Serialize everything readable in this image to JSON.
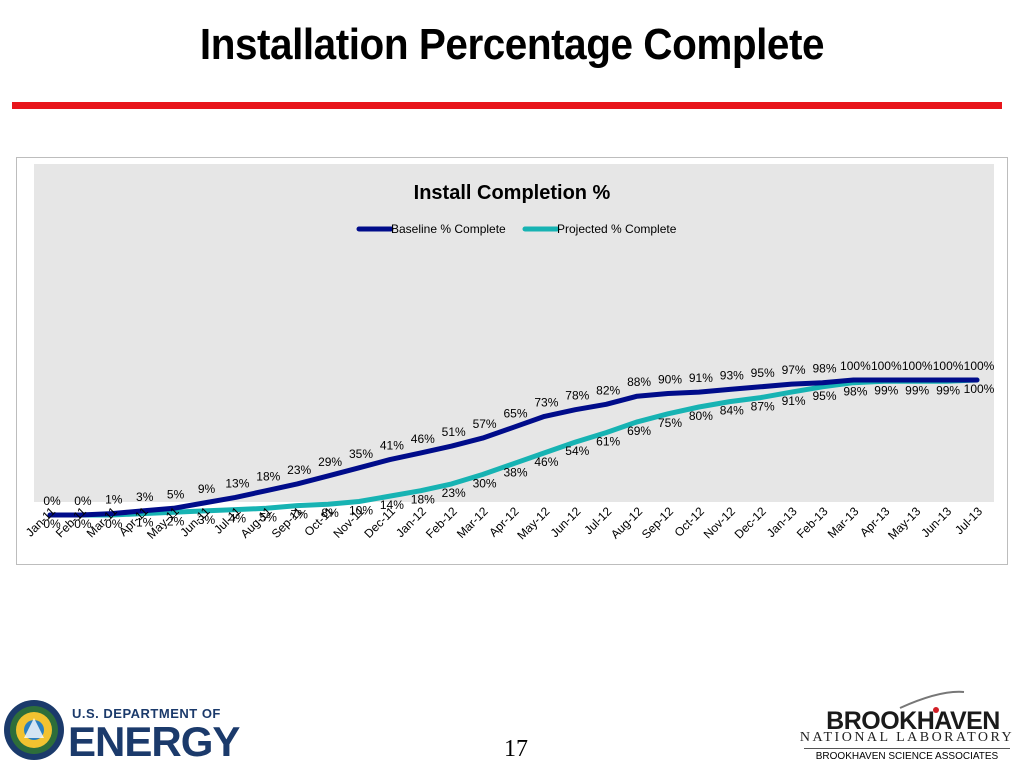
{
  "slide": {
    "title": "Installation Percentage Complete",
    "page_number": "17"
  },
  "footer": {
    "doe_line1": "U.S. DEPARTMENT OF",
    "doe_line2": "ENERGY",
    "bnl_name": "BROOKHAVEN",
    "bnl_subtitle": "NATIONAL LABORATORY",
    "bnl_associates": "BROOKHAVEN SCIENCE ASSOCIATES"
  },
  "colors": {
    "title_rule": "#e8151b",
    "plot_background": "#e6e6e6",
    "baseline_series": "#000c8a",
    "projected_series": "#17b3b3"
  },
  "chart_data": {
    "type": "line",
    "title": "Install Completion %",
    "xlabel": "",
    "ylabel": "",
    "ylim": [
      0,
      100
    ],
    "grid": false,
    "legend_position": "top-center",
    "categories": [
      "Jan-11",
      "Feb-11",
      "Mar-11",
      "Apr-11",
      "May-11",
      "Jun-11",
      "Jul-11",
      "Aug-11",
      "Sep-11",
      "Oct-11",
      "Nov-11",
      "Dec-11",
      "Jan-12",
      "Feb-12",
      "Mar-12",
      "Apr-12",
      "May-12",
      "Jun-12",
      "Jul-12",
      "Aug-12",
      "Sep-12",
      "Oct-12",
      "Nov-12",
      "Dec-12",
      "Jan-13",
      "Feb-13",
      "Mar-13",
      "Apr-13",
      "May-13",
      "Jun-13",
      "Jul-13"
    ],
    "series": [
      {
        "name": "Baseline % Complete",
        "color": "#000c8a",
        "values": [
          0,
          0,
          1,
          3,
          5,
          9,
          13,
          18,
          23,
          29,
          35,
          41,
          46,
          51,
          57,
          65,
          73,
          78,
          82,
          88,
          90,
          91,
          93,
          95,
          97,
          98,
          100,
          100,
          100,
          100,
          100
        ]
      },
      {
        "name": "Projected % Complete",
        "color": "#17b3b3",
        "values": [
          0,
          0,
          0,
          1,
          2,
          3,
          4,
          5,
          7,
          8,
          10,
          14,
          18,
          23,
          30,
          38,
          46,
          54,
          61,
          69,
          75,
          80,
          84,
          87,
          91,
          95,
          98,
          99,
          99,
          99,
          100
        ]
      }
    ]
  }
}
